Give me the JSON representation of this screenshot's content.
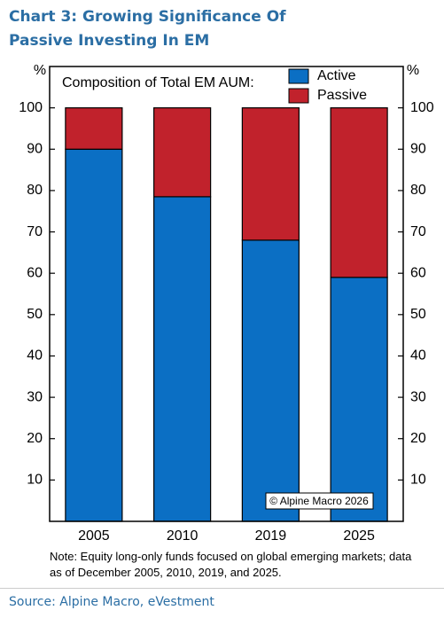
{
  "chart_data": {
    "type": "bar",
    "stacked": true,
    "title": "Chart 3: Growing Significance Of Passive Investing In EM",
    "legend_title": "Composition of Total EM AUM:",
    "y_unit": "%",
    "categories": [
      "2005",
      "2010",
      "2019",
      "2025"
    ],
    "series": [
      {
        "name": "Active",
        "color": "#0b6fc4",
        "values": [
          90,
          78.5,
          68,
          59
        ]
      },
      {
        "name": "Passive",
        "color": "#c1222c",
        "values": [
          10,
          21.5,
          32,
          41
        ]
      }
    ],
    "ylim": [
      0,
      110
    ],
    "yticks": [
      10,
      20,
      30,
      40,
      50,
      60,
      70,
      80,
      90,
      100
    ],
    "watermark": "© Alpine Macro 2026",
    "note": "Note: Equity long-only funds focused on global emerging markets; data as of December 2005, 2010, 2019, and 2025.",
    "source": "Source: Alpine Macro, eVestment"
  }
}
